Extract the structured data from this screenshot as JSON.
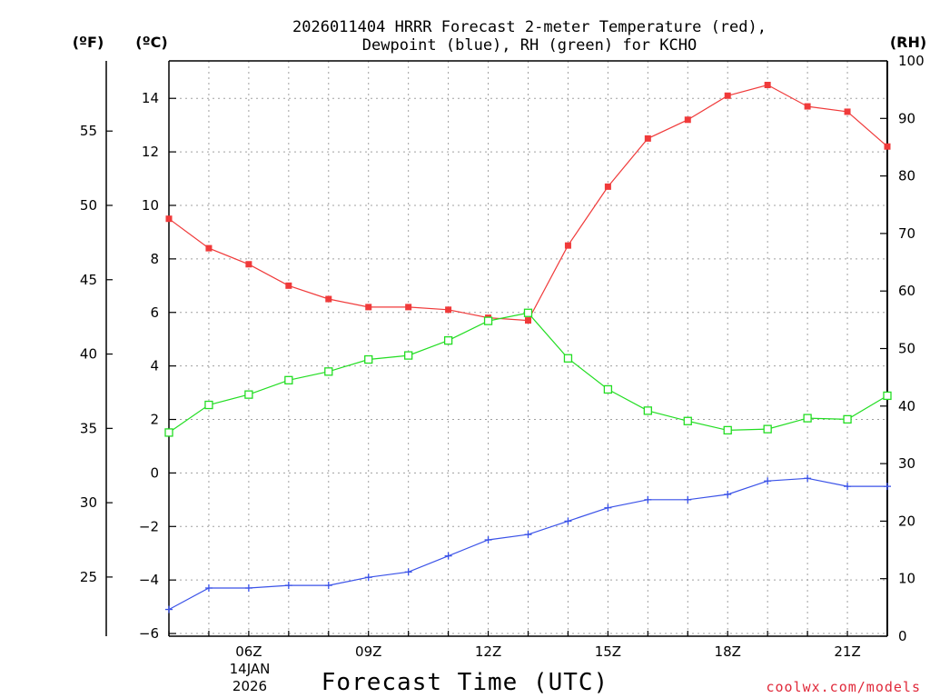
{
  "chart_data": {
    "type": "line",
    "title_line1": "2026011404 HRRR Forecast 2-meter Temperature (red),",
    "title_line2": "Dewpoint (blue), RH (green) for KCHO",
    "xlabel": "Forecast Time (UTC)",
    "units": {
      "fahrenheit": "(ºF)",
      "celsius": "(ºC)",
      "rh": "(RH)"
    },
    "credit": "coolwx.com/models",
    "x_hours": [
      4,
      5,
      6,
      7,
      8,
      9,
      10,
      11,
      12,
      13,
      14,
      15,
      16,
      17,
      18,
      19,
      20,
      21,
      22
    ],
    "xlim": [
      4,
      22
    ],
    "x_ticks": [
      {
        "hour": 6,
        "label": "06Z"
      },
      {
        "hour": 9,
        "label": "09Z"
      },
      {
        "hour": 12,
        "label": "12Z"
      },
      {
        "hour": 15,
        "label": "15Z"
      },
      {
        "hour": 18,
        "label": "18Z"
      },
      {
        "hour": 21,
        "label": "21Z"
      }
    ],
    "date_label_line1": "14JAN",
    "date_label_line2": "2026",
    "ylim_c": [
      -6.1,
      15.4
    ],
    "y_ticks_c": [
      {
        "value": 14,
        "label": "14"
      },
      {
        "value": 12,
        "label": "12"
      },
      {
        "value": 10,
        "label": "10"
      },
      {
        "value": 8,
        "label": "8"
      },
      {
        "value": 6,
        "label": "6"
      },
      {
        "value": 4,
        "label": "4"
      },
      {
        "value": 2,
        "label": "2"
      },
      {
        "value": 0,
        "label": "0"
      },
      {
        "value": -2,
        "label": "−2"
      },
      {
        "value": -4,
        "label": "−4"
      },
      {
        "value": -6,
        "label": "−6"
      }
    ],
    "y_ticks_f": [
      {
        "value": 55,
        "label": "55"
      },
      {
        "value": 50,
        "label": "50"
      },
      {
        "value": 45,
        "label": "45"
      },
      {
        "value": 40,
        "label": "40"
      },
      {
        "value": 35,
        "label": "35"
      },
      {
        "value": 30,
        "label": "30"
      },
      {
        "value": 25,
        "label": "25"
      }
    ],
    "ylim_rh": [
      0,
      100
    ],
    "y_ticks_rh": [
      {
        "value": 100,
        "label": "100"
      },
      {
        "value": 90,
        "label": "90"
      },
      {
        "value": 80,
        "label": "80"
      },
      {
        "value": 70,
        "label": "70"
      },
      {
        "value": 60,
        "label": "60"
      },
      {
        "value": 50,
        "label": "50"
      },
      {
        "value": 40,
        "label": "40"
      },
      {
        "value": 30,
        "label": "30"
      },
      {
        "value": 20,
        "label": "20"
      },
      {
        "value": 10,
        "label": "10"
      },
      {
        "value": 0,
        "label": "0"
      }
    ],
    "series": [
      {
        "name": "2-meter Temperature",
        "axis": "celsius",
        "color": "#f03a3a",
        "marker": "filled-square",
        "values": [
          9.5,
          8.4,
          7.8,
          7.0,
          6.5,
          6.2,
          6.2,
          6.1,
          5.8,
          5.7,
          8.5,
          10.7,
          12.5,
          13.2,
          14.1,
          14.5,
          13.7,
          13.5,
          12.2
        ]
      },
      {
        "name": "Dewpoint",
        "axis": "celsius",
        "color": "#3a52e8",
        "marker": "plus",
        "values": [
          -5.1,
          -4.3,
          -4.3,
          -4.2,
          -4.2,
          -3.9,
          -3.7,
          -3.1,
          -2.5,
          -2.3,
          -1.8,
          -1.3,
          -1.0,
          -1.0,
          -0.8,
          -0.3,
          -0.2,
          -0.5,
          -0.5
        ]
      },
      {
        "name": "RH",
        "axis": "rh",
        "color": "#22dd22",
        "marker": "open-square",
        "values": [
          35.4,
          40.2,
          42.0,
          44.5,
          46.0,
          48.1,
          48.8,
          51.4,
          54.8,
          56.2,
          48.3,
          42.9,
          39.2,
          37.4,
          35.8,
          36.0,
          37.9,
          37.7,
          41.8
        ]
      }
    ]
  }
}
